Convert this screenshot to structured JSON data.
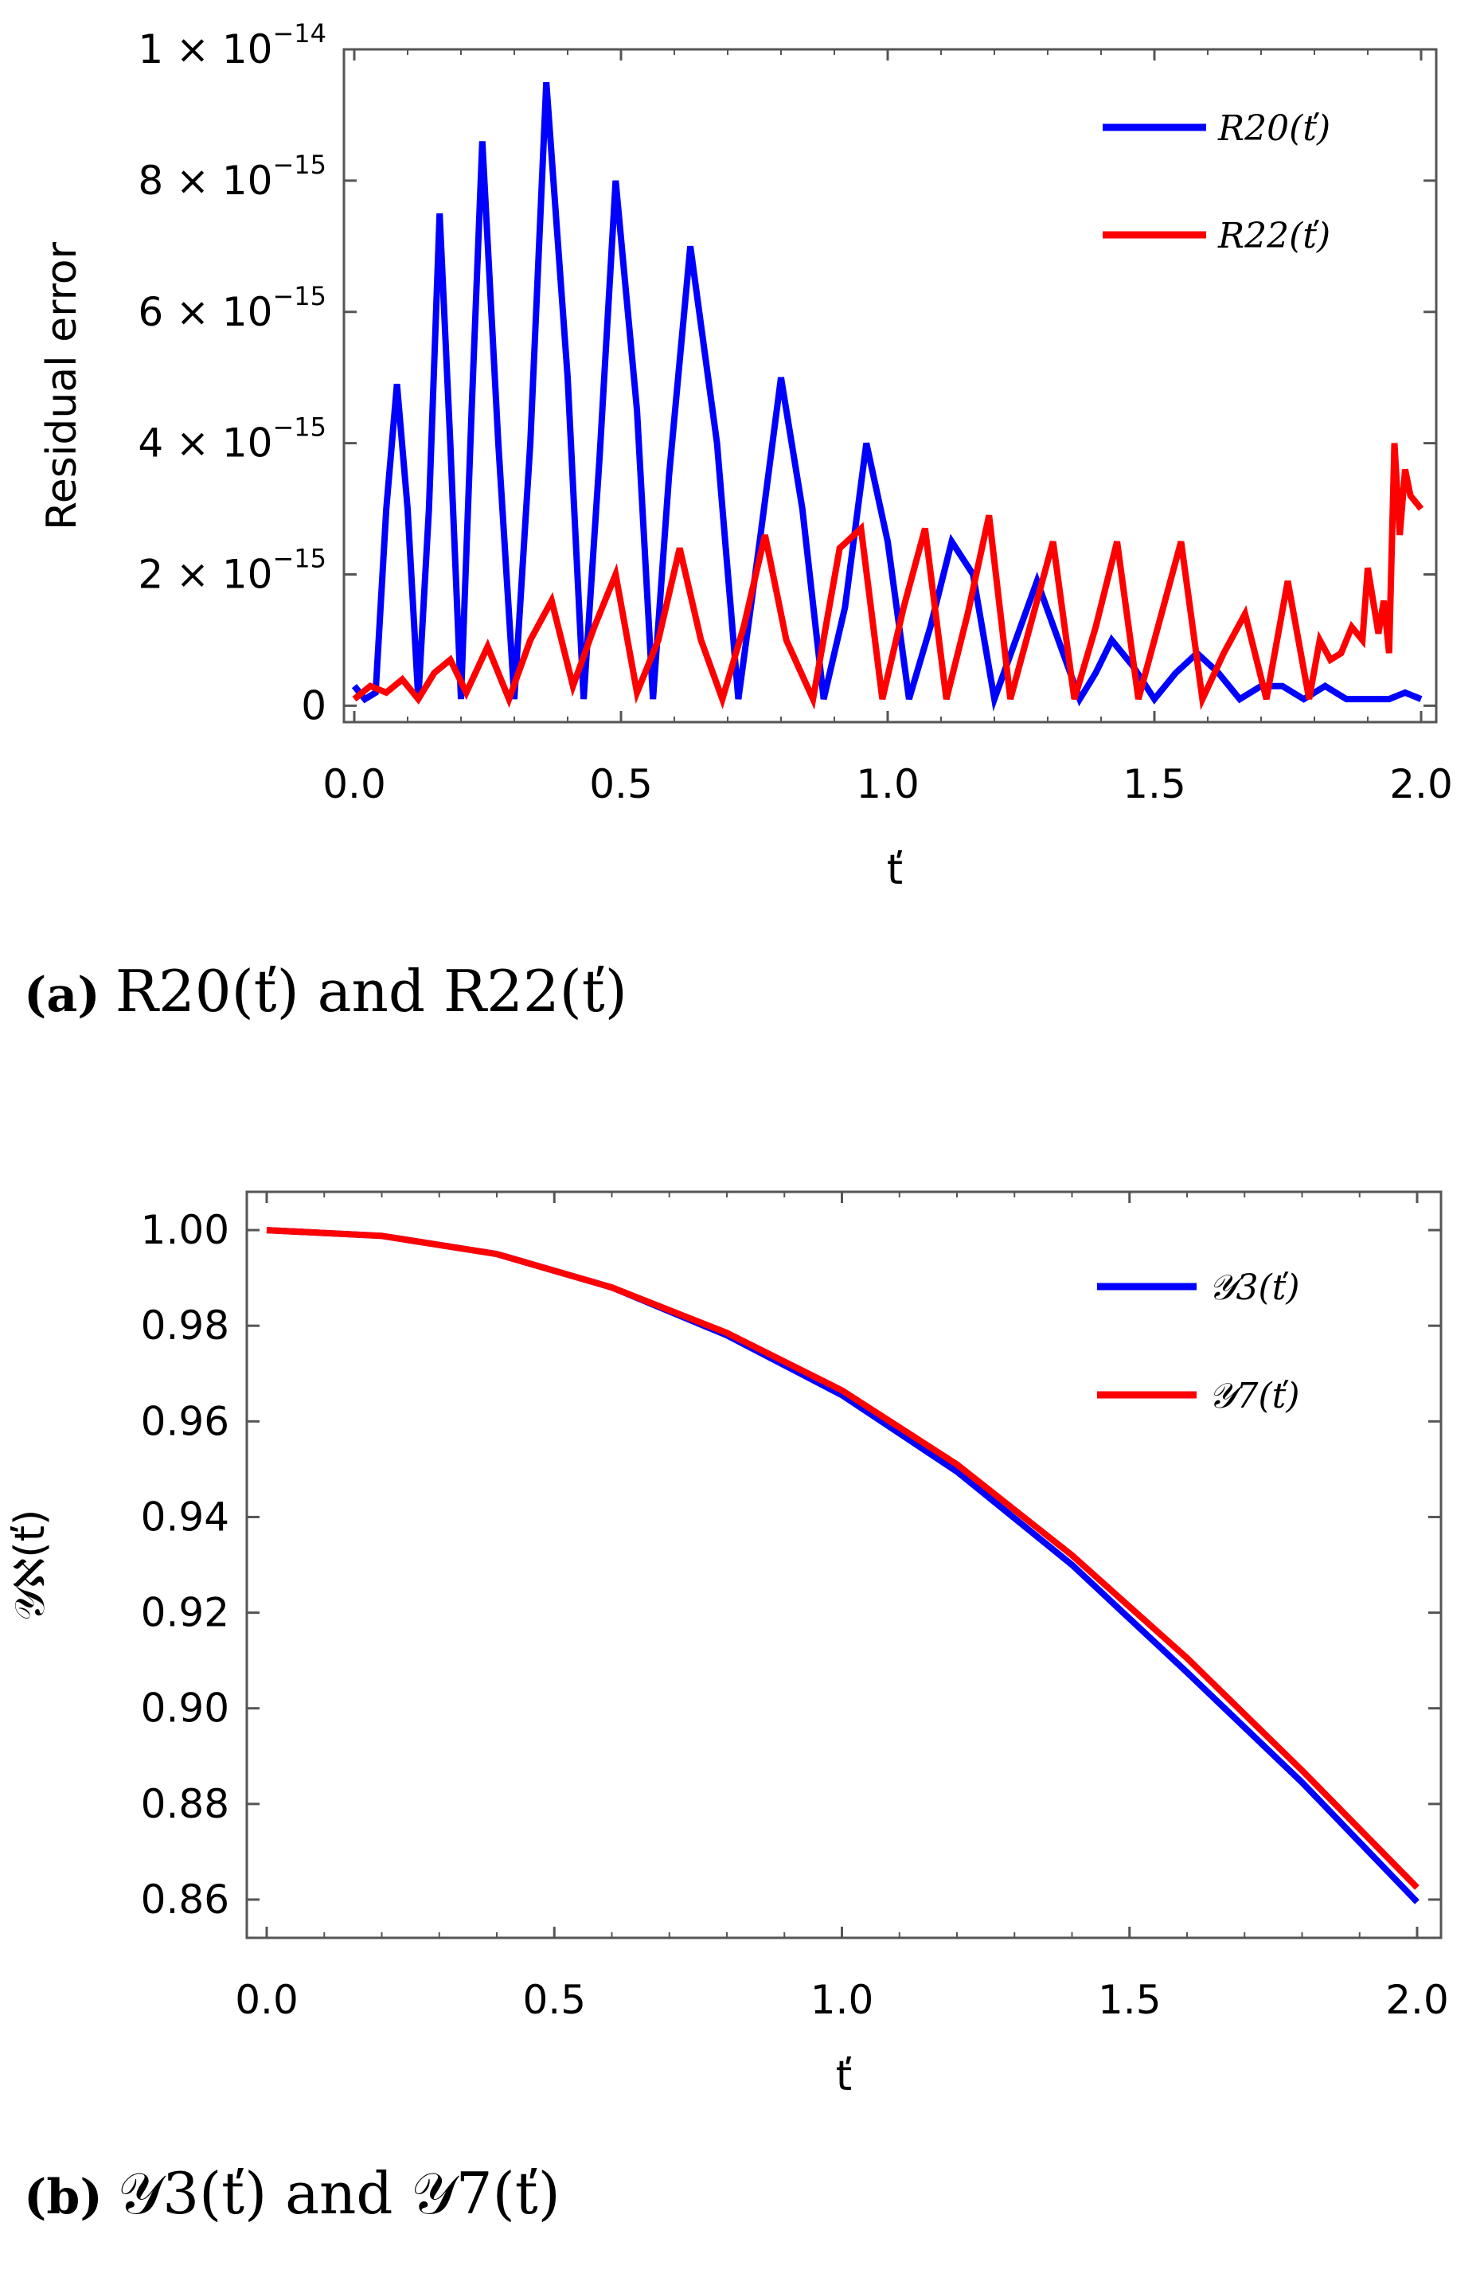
{
  "chart_data": [
    {
      "type": "line",
      "panel": "a",
      "caption": "(a) R20(ť) and R22(ť)",
      "caption_label": "(a)",
      "caption_text": "R20(ť) and R22(ť)",
      "xlabel": "ť",
      "ylabel": "Residual error",
      "xlim": [
        0.0,
        2.0
      ],
      "ylim": [
        -2.5e-16,
        1e-14
      ],
      "xticks": [
        "0.0",
        "0.5",
        "1.0",
        "1.5",
        "2.0"
      ],
      "yticks": [
        {
          "value": 0,
          "label": "0"
        },
        {
          "value": 2e-15,
          "mant": "2 × 10",
          "exp": "−15"
        },
        {
          "value": 4e-15,
          "mant": "4 × 10",
          "exp": "−15"
        },
        {
          "value": 6e-15,
          "mant": "6 × 10",
          "exp": "−15"
        },
        {
          "value": 8e-15,
          "mant": "8 × 10",
          "exp": "−15"
        },
        {
          "value": 1e-14,
          "mant": "1 × 10",
          "exp": "−14"
        }
      ],
      "legend_position": "top-right",
      "series": [
        {
          "name": "R20(ť)",
          "color": "#0000ff",
          "x": [
            0,
            0.02,
            0.04,
            0.06,
            0.08,
            0.1,
            0.12,
            0.14,
            0.16,
            0.18,
            0.2,
            0.22,
            0.24,
            0.27,
            0.3,
            0.33,
            0.36,
            0.4,
            0.43,
            0.46,
            0.49,
            0.53,
            0.56,
            0.59,
            0.63,
            0.68,
            0.72,
            0.76,
            0.8,
            0.84,
            0.88,
            0.92,
            0.96,
            1.0,
            1.04,
            1.08,
            1.12,
            1.16,
            1.2,
            1.24,
            1.28,
            1.32,
            1.36,
            1.39,
            1.42,
            1.46,
            1.5,
            1.54,
            1.58,
            1.62,
            1.66,
            1.7,
            1.74,
            1.78,
            1.82,
            1.86,
            1.9,
            1.94,
            1.97,
            2.0
          ],
          "y": [
            3e-16,
            1e-16,
            2e-16,
            3e-15,
            4.9e-15,
            3e-15,
            1e-16,
            3e-15,
            7.5e-15,
            4e-15,
            1e-16,
            4.5e-15,
            8.6e-15,
            4e-15,
            1e-16,
            4e-15,
            9.5e-15,
            5e-15,
            1e-16,
            3.8e-15,
            8e-15,
            4.5e-15,
            1e-16,
            3.5e-15,
            7e-15,
            4e-15,
            1e-16,
            2.5e-15,
            5e-15,
            3e-15,
            1e-16,
            1.5e-15,
            4e-15,
            2.5e-15,
            1e-16,
            1.2e-15,
            2.5e-15,
            2e-15,
            1e-16,
            1e-15,
            1.9e-15,
            1e-15,
            1e-16,
            5e-16,
            1e-15,
            6e-16,
            1e-16,
            5e-16,
            8e-16,
            5e-16,
            1e-16,
            3e-16,
            3e-16,
            1e-16,
            3e-16,
            1e-16,
            1e-16,
            1e-16,
            2e-16,
            1e-16
          ]
        },
        {
          "name": "R22(ť)",
          "color": "#ff0000",
          "x": [
            0,
            0.03,
            0.06,
            0.09,
            0.12,
            0.15,
            0.18,
            0.21,
            0.25,
            0.29,
            0.33,
            0.37,
            0.41,
            0.45,
            0.49,
            0.53,
            0.57,
            0.61,
            0.65,
            0.69,
            0.73,
            0.77,
            0.81,
            0.86,
            0.91,
            0.95,
            0.99,
            1.03,
            1.07,
            1.11,
            1.15,
            1.19,
            1.23,
            1.27,
            1.31,
            1.35,
            1.39,
            1.43,
            1.47,
            1.51,
            1.55,
            1.59,
            1.63,
            1.67,
            1.71,
            1.75,
            1.79,
            1.81,
            1.83,
            1.85,
            1.87,
            1.89,
            1.9,
            1.92,
            1.93,
            1.94,
            1.95,
            1.96,
            1.97,
            1.98,
            2.0
          ],
          "y": [
            1e-16,
            3e-16,
            2e-16,
            4e-16,
            1e-16,
            5e-16,
            7e-16,
            2e-16,
            9e-16,
            1e-16,
            1e-15,
            1.6e-15,
            3e-16,
            1.2e-15,
            2e-15,
            2e-16,
            1e-15,
            2.4e-15,
            1e-15,
            1e-16,
            1.2e-15,
            2.6e-15,
            1e-15,
            1e-16,
            2.4e-15,
            2.7e-15,
            1e-16,
            1.5e-15,
            2.7e-15,
            1e-16,
            1.4e-15,
            2.9e-15,
            1e-16,
            1.3e-15,
            2.5e-15,
            1e-16,
            1.2e-15,
            2.5e-15,
            1e-16,
            1.3e-15,
            2.5e-15,
            1e-16,
            8e-16,
            1.4e-15,
            1e-16,
            1.9e-15,
            1e-16,
            1e-15,
            7e-16,
            8e-16,
            1.2e-15,
            1e-15,
            2.1e-15,
            1.1e-15,
            1.6e-15,
            8e-16,
            4e-15,
            2.6e-15,
            3.6e-15,
            3.2e-15,
            3e-15
          ]
        }
      ]
    },
    {
      "type": "line",
      "panel": "b",
      "caption": "(b) Y3(ť) and Y7(ť)",
      "caption_label": "(b)",
      "caption_text": "𝒴3(ť) and 𝒴7(ť)",
      "xlabel": "ť",
      "ylabel": "𝒴ℵ(ť)",
      "xlim": [
        0.0,
        2.0
      ],
      "ylim": [
        0.852,
        1.008
      ],
      "xticks": [
        "0.0",
        "0.5",
        "1.0",
        "1.5",
        "2.0"
      ],
      "yticks": [
        "1.00",
        "0.98",
        "0.96",
        "0.94",
        "0.92",
        "0.90",
        "0.88",
        "0.86"
      ],
      "legend_position": "top-right",
      "series": [
        {
          "name": "𝒴3(ť)",
          "color": "#0000ff",
          "x": [
            0,
            0.2,
            0.4,
            0.6,
            0.8,
            1.0,
            1.2,
            1.4,
            1.6,
            1.8,
            2.0
          ],
          "y": [
            1.0,
            0.9988,
            0.995,
            0.988,
            0.978,
            0.9655,
            0.9495,
            0.93,
            0.9075,
            0.8845,
            0.8595
          ]
        },
        {
          "name": "𝒴7(ť)",
          "color": "#ff0000",
          "x": [
            0,
            0.2,
            0.4,
            0.6,
            0.8,
            1.0,
            1.2,
            1.4,
            1.6,
            1.8,
            2.0
          ],
          "y": [
            1.0,
            0.9988,
            0.995,
            0.988,
            0.9785,
            0.9665,
            0.951,
            0.932,
            0.9105,
            0.887,
            0.8625
          ]
        }
      ]
    }
  ]
}
